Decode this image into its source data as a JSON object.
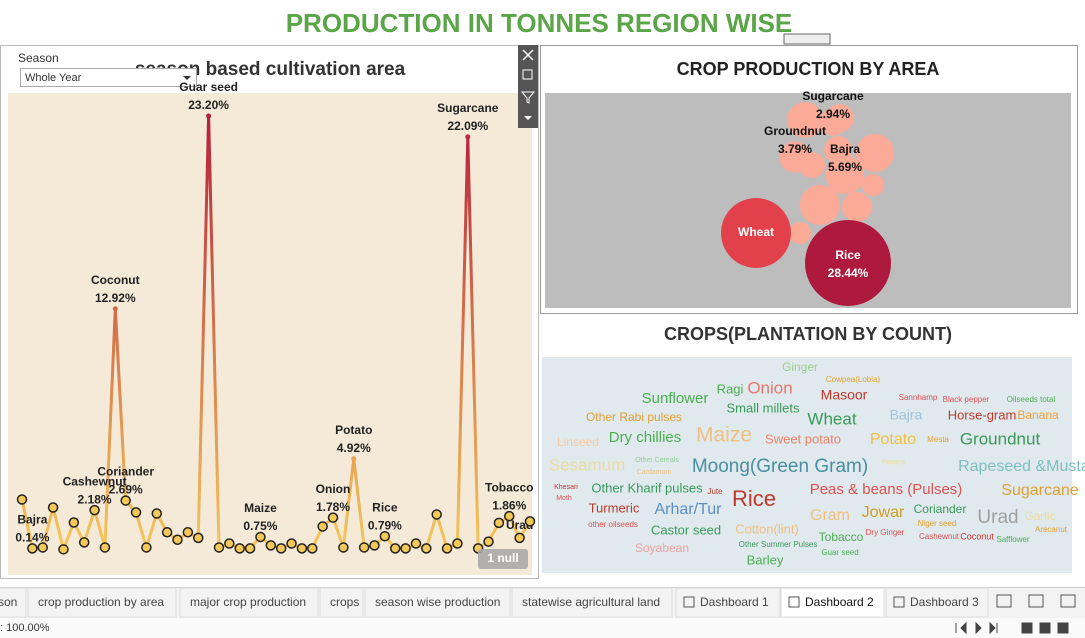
{
  "header": {
    "title": "PRODUCTION IN TONNES REGION WISE"
  },
  "season_filter": {
    "label": "Season",
    "value": "Whole Year"
  },
  "null_badge": "1 null",
  "chart_data": [
    {
      "type": "line",
      "title": "season based cultivation area",
      "categories": [
        null,
        "Bajra",
        null,
        null,
        null,
        null,
        null,
        "Cashewnut",
        null,
        "Coconut",
        "Coriander",
        null,
        null,
        null,
        null,
        null,
        null,
        null,
        "Guar seed",
        null,
        null,
        null,
        null,
        "Maize",
        null,
        null,
        null,
        null,
        null,
        null,
        "Onion",
        null,
        "Potato",
        null,
        null,
        "Rice",
        null,
        null,
        null,
        null,
        null,
        null,
        null,
        "Sugarcane",
        null,
        null,
        null,
        "Tobacco",
        "Urad",
        null
      ],
      "values": [
        2.75,
        0.14,
        0.19,
        2.32,
        0.09,
        1.52,
        0.46,
        2.18,
        0.19,
        12.92,
        2.69,
        2.06,
        0.19,
        2.0,
        1.0,
        0.6,
        1.0,
        0.7,
        23.2,
        0.19,
        0.4,
        0.14,
        0.14,
        0.75,
        0.3,
        0.14,
        0.4,
        0.14,
        0.14,
        1.31,
        1.78,
        0.19,
        4.92,
        0.19,
        0.3,
        0.79,
        0.14,
        0.14,
        0.4,
        0.14,
        1.95,
        0.14,
        0.4,
        22.09,
        0.14,
        0.5,
        1.5,
        1.86,
        0.7,
        1.58
      ],
      "value_labels": [
        null,
        "0.14%",
        null,
        null,
        null,
        null,
        null,
        "2.18%",
        null,
        "12.92%",
        "2.69%",
        null,
        null,
        null,
        null,
        null,
        null,
        null,
        "23.20%",
        null,
        null,
        null,
        null,
        "0.75%",
        null,
        null,
        null,
        null,
        null,
        null,
        "1.78%",
        null,
        "4.92%",
        null,
        null,
        "0.79%",
        null,
        null,
        null,
        null,
        null,
        null,
        null,
        "22.09%",
        null,
        null,
        null,
        "1.86%",
        null,
        null
      ],
      "color_low": "#f5c85a",
      "color_high": "#b5213c"
    },
    {
      "type": "bubble",
      "title": "CROP PRODUCTION BY  AREA",
      "categories": [
        "Rice",
        "Wheat",
        "Bajra",
        "Groundnut",
        "Sugarcane",
        null,
        null,
        null,
        null,
        null,
        null,
        null,
        null,
        null
      ],
      "values": [
        28.44,
        18.8,
        5.69,
        3.79,
        2.94,
        5.0,
        3.0,
        5.6,
        6.2,
        3.5,
        1.9,
        1.9,
        3.0,
        2.6
      ],
      "value_labels": [
        "28.44%",
        null,
        "5.69%",
        "3.79%",
        "2.94%",
        null,
        null,
        null,
        null,
        null,
        null,
        null,
        null,
        null
      ],
      "colors": [
        "#ad1a3d",
        "#e2404a",
        "#fcaa98",
        "#fcaa98",
        "#fcaa98",
        "#fcaa98",
        "#fcaa98",
        "#fcaa98",
        "#fcaa98",
        "#fcaa98",
        "#fcaa98",
        "#fcaa98",
        "#fcaa98",
        "#fcaa98"
      ]
    },
    {
      "type": "wordcloud",
      "title": "CROPS(PLANTATION BY COUNT)",
      "words": [
        "Ginger",
        "Cowpea(Lobia)",
        "Ragi",
        "Onion",
        "Sannhamp",
        "Black pepper",
        "Oilseeds total",
        "Sunflower",
        "Masoor",
        "Small millets",
        "Bajra",
        "Horse-gram",
        "Banana",
        "Other Rabi pulses",
        "Wheat",
        "Linseed",
        "Dry chillies",
        "Maize",
        "Sweet potato",
        "Potato",
        "Mesta",
        "Groundnut",
        "Sesamum",
        "Other Cereals",
        "Cardamom",
        "Moong(Green Gram)",
        "Papaya",
        "Rapeseed &Mustard",
        "Khesari",
        "Moth",
        "Other Kharif pulses",
        "Jute",
        "Rice",
        "Peas & beans (Pulses)",
        "Sugarcane",
        "Turmeric",
        "Arhar/Tur",
        "Gram",
        "Jowar",
        "Coriander",
        "Urad",
        "Garlic",
        "Niger seed",
        "Arecanut",
        "other oilseeds",
        "Castor seed",
        "Cotton(lint)",
        "Tobacco",
        "Dry Ginger",
        "Cashewnut",
        "Coconut",
        "Safflower",
        "Other Summer Pulses",
        "Guar seed",
        "Soyabean",
        "Barley"
      ],
      "values": [
        24,
        16,
        26,
        34,
        16,
        16,
        16,
        30,
        28,
        26,
        28,
        26,
        24,
        24,
        34,
        24,
        30,
        42,
        26,
        32,
        16,
        34,
        34,
        14,
        14,
        38,
        14,
        32,
        14,
        14,
        26,
        16,
        44,
        30,
        32,
        26,
        32,
        32,
        32,
        24,
        38,
        24,
        16,
        16,
        16,
        26,
        26,
        24,
        16,
        16,
        18,
        16,
        16,
        16,
        24,
        26
      ],
      "colors": [
        "#9fd08e",
        "#e8a030",
        "#4caf50",
        "#e8776b",
        "#e05050",
        "#e05050",
        "#4caf50",
        "#4caf50",
        "#c0392b",
        "#3a9a5a",
        "#9ec4e0",
        "#c0392b",
        "#f0a040",
        "#e0a030",
        "#3a9a5a",
        "#f8c9a0",
        "#4caf50",
        "#f0c080",
        "#f08060",
        "#f0c040",
        "#e0a030",
        "#3a9a5a",
        "#ecdca0",
        "#8fd08f",
        "#f0c080",
        "#4a8fa0",
        "#ecdca0",
        "#7fbfbf",
        "#c0392b",
        "#e05050",
        "#3a9a5a",
        "#c0392b",
        "#c0392b",
        "#e05050",
        "#e0a030",
        "#c0392b",
        "#5a8fc0",
        "#f0c080",
        "#d4a020",
        "#3a9a5a",
        "#a0a0a0",
        "#ecdca0",
        "#e0a030",
        "#e0a030",
        "#e05050",
        "#3a9a5a",
        "#f0c080",
        "#4caf50",
        "#e05050",
        "#e05050",
        "#c0392b",
        "#4caf50",
        "#3a9a5a",
        "#4caf50",
        "#f0a0a0",
        "#4caf50"
      ]
    }
  ],
  "tabs": [
    "son",
    "crop production by area",
    "major crop production",
    "crops",
    "season wise production",
    "statewise agricultural land",
    "Dashboard 1",
    "Dashboard 2",
    "Dashboard 3"
  ],
  "active_tab": 7,
  "zoom": ": 100.00%"
}
